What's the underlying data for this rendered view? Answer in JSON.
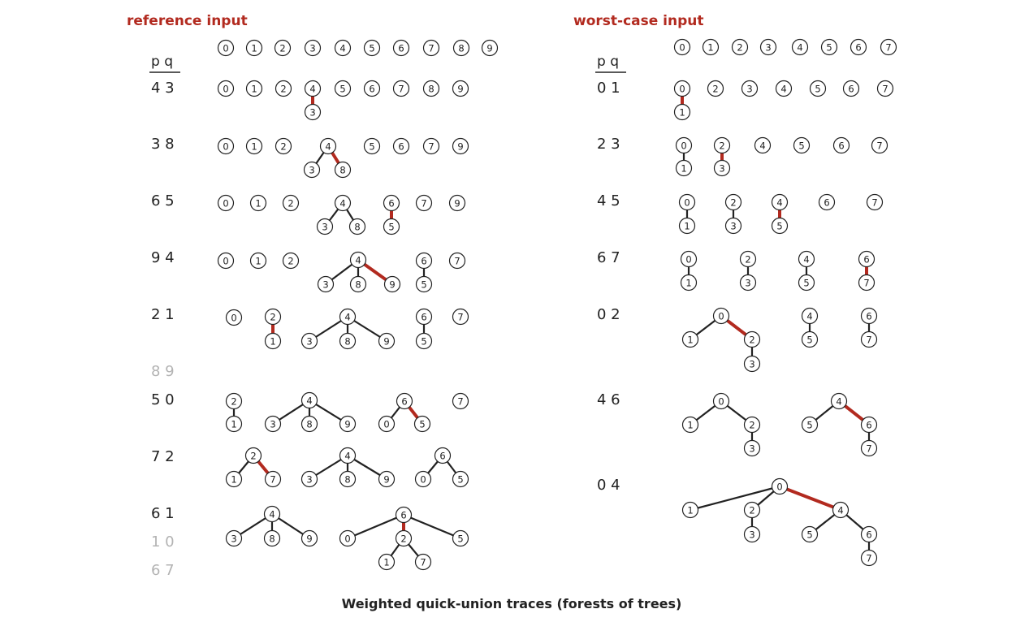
{
  "caption": "Weighted quick-union traces (forests of trees)",
  "colors": {
    "accent": "#b22a1f",
    "ink": "#222222",
    "muted": "#b3b3b3"
  },
  "panels": [
    {
      "id": "reference",
      "title": "reference input",
      "header": "p q",
      "initial": [
        "0",
        "1",
        "2",
        "3",
        "4",
        "5",
        "6",
        "7",
        "8",
        "9"
      ],
      "steps": [
        {
          "pair": "4 3",
          "muted": false,
          "edges": [
            [
              "4",
              "3",
              true
            ]
          ]
        },
        {
          "pair": "3 8",
          "muted": false,
          "edges": [
            [
              "4",
              "3",
              false
            ],
            [
              "4",
              "8",
              true
            ]
          ]
        },
        {
          "pair": "6 5",
          "muted": false,
          "edges": [
            [
              "4",
              "3",
              false
            ],
            [
              "4",
              "8",
              false
            ],
            [
              "6",
              "5",
              true
            ]
          ]
        },
        {
          "pair": "9 4",
          "muted": false,
          "edges": [
            [
              "4",
              "3",
              false
            ],
            [
              "4",
              "8",
              false
            ],
            [
              "4",
              "9",
              true
            ],
            [
              "6",
              "5",
              false
            ]
          ]
        },
        {
          "pair": "2 1",
          "muted": false,
          "edges": [
            [
              "2",
              "1",
              true
            ],
            [
              "4",
              "3",
              false
            ],
            [
              "4",
              "8",
              false
            ],
            [
              "4",
              "9",
              false
            ],
            [
              "6",
              "5",
              false
            ]
          ]
        },
        {
          "pair": "8 9",
          "muted": true,
          "edges": []
        },
        {
          "pair": "5 0",
          "muted": false,
          "edges": [
            [
              "2",
              "1",
              false
            ],
            [
              "4",
              "3",
              false
            ],
            [
              "4",
              "8",
              false
            ],
            [
              "4",
              "9",
              false
            ],
            [
              "6",
              "0",
              false
            ],
            [
              "6",
              "5",
              true
            ]
          ]
        },
        {
          "pair": "7 2",
          "muted": false,
          "edges": [
            [
              "2",
              "1",
              false
            ],
            [
              "2",
              "7",
              true
            ],
            [
              "4",
              "3",
              false
            ],
            [
              "4",
              "8",
              false
            ],
            [
              "4",
              "9",
              false
            ],
            [
              "6",
              "0",
              false
            ],
            [
              "6",
              "5",
              false
            ]
          ]
        },
        {
          "pair": "6 1",
          "muted": false,
          "edges": [
            [
              "4",
              "3",
              false
            ],
            [
              "4",
              "8",
              false
            ],
            [
              "4",
              "9",
              false
            ],
            [
              "6",
              "0",
              false
            ],
            [
              "6",
              "2",
              true
            ],
            [
              "6",
              "5",
              false
            ],
            [
              "2",
              "1",
              false
            ],
            [
              "2",
              "7",
              false
            ]
          ]
        },
        {
          "pair": "1 0",
          "muted": true,
          "edges": []
        },
        {
          "pair": "6 7",
          "muted": true,
          "edges": []
        }
      ]
    },
    {
      "id": "worst",
      "title": "worst-case input",
      "header": "p q",
      "initial": [
        "0",
        "1",
        "2",
        "3",
        "4",
        "5",
        "6",
        "7"
      ],
      "steps": [
        {
          "pair": "0 1",
          "muted": false,
          "edges": [
            [
              "0",
              "1",
              true
            ]
          ]
        },
        {
          "pair": "2 3",
          "muted": false,
          "edges": [
            [
              "0",
              "1",
              false
            ],
            [
              "2",
              "3",
              true
            ]
          ]
        },
        {
          "pair": "4 5",
          "muted": false,
          "edges": [
            [
              "0",
              "1",
              false
            ],
            [
              "2",
              "3",
              false
            ],
            [
              "4",
              "5",
              true
            ]
          ]
        },
        {
          "pair": "6 7",
          "muted": false,
          "edges": [
            [
              "0",
              "1",
              false
            ],
            [
              "2",
              "3",
              false
            ],
            [
              "4",
              "5",
              false
            ],
            [
              "6",
              "7",
              true
            ]
          ]
        },
        {
          "pair": "0 2",
          "muted": false,
          "edges": [
            [
              "0",
              "1",
              false
            ],
            [
              "0",
              "2",
              true
            ],
            [
              "2",
              "3",
              false
            ],
            [
              "4",
              "5",
              false
            ],
            [
              "6",
              "7",
              false
            ]
          ]
        },
        {
          "pair": "4 6",
          "muted": false,
          "edges": [
            [
              "0",
              "1",
              false
            ],
            [
              "0",
              "2",
              false
            ],
            [
              "2",
              "3",
              false
            ],
            [
              "4",
              "5",
              false
            ],
            [
              "4",
              "6",
              true
            ],
            [
              "6",
              "7",
              false
            ]
          ]
        },
        {
          "pair": "0 4",
          "muted": false,
          "edges": [
            [
              "0",
              "1",
              false
            ],
            [
              "0",
              "2",
              false
            ],
            [
              "0",
              "4",
              true
            ],
            [
              "2",
              "3",
              false
            ],
            [
              "4",
              "5",
              false
            ],
            [
              "4",
              "6",
              false
            ],
            [
              "6",
              "7",
              false
            ]
          ]
        }
      ]
    }
  ]
}
